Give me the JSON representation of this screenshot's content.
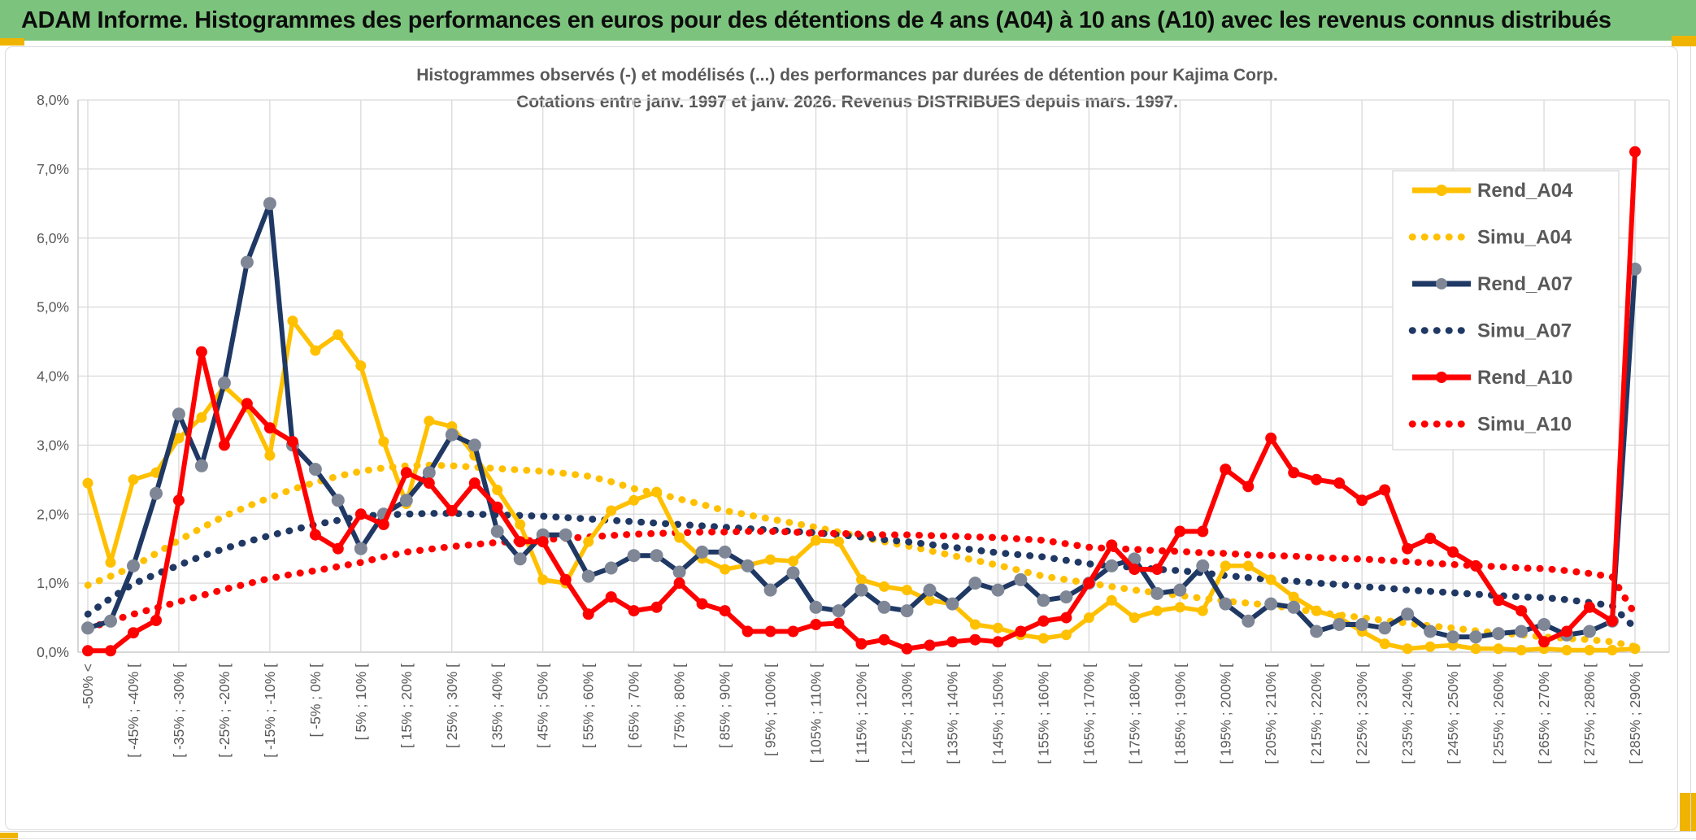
{
  "header": {
    "title": "ADAM Informe. Histogrammes des performances en euros pour des détentions de 4 ans (A04) à 10 ans (A10) avec les revenus connus distribués"
  },
  "accents": {
    "green": "#7CC47D",
    "gold": "#F0B400"
  },
  "chart_data": {
    "type": "line",
    "title_line1": "Histogrammes observés (-) et modélisés (...) des performances par durées de détention pour Kajima Corp.",
    "title_line2": "Cotations entre janv. 1997 et janv. 2026. Revenus DISTRIBUES depuis mars. 1997.",
    "ylim": [
      0,
      8
    ],
    "grid": true,
    "legend_position": "right-top",
    "text_color": "#595959",
    "grid_color": "#D9D9D9",
    "axis_color": "#BFBFBF",
    "y_ticks": [
      "0,0%",
      "1,0%",
      "2,0%",
      "3,0%",
      "4,0%",
      "5,0%",
      "6,0%",
      "7,0%",
      "8,0%"
    ],
    "n_points": 69,
    "points_per_label": 2,
    "x_tick_labels": [
      "-50% <",
      "[ -45% ; -40% [",
      "[ -35% ; -30% [",
      "[ -25% ; -20% [",
      "[ -15% ; -10% [",
      "[ -5% ; 0% [",
      "[ 5% ; 10% [",
      "[ 15% ; 20% [",
      "[ 25% ; 30% [",
      "[ 35% ; 40% [",
      "[ 45% ; 50% [",
      "[ 55% ; 60% [",
      "[ 65% ; 70% [",
      "[ 75% ; 80% [",
      "[ 85% ; 90% [",
      "[ 95% ; 100% [",
      "[ 105% ; 110% [",
      "[ 115% ; 120% [",
      "[ 125% ; 130% [",
      "[ 135% ; 140% [",
      "[ 145% ; 150% [",
      "[ 155% ; 160% [",
      "[ 165% ; 170% [",
      "[ 175% ; 180% [",
      "[ 185% ; 190% [",
      "[ 195% ; 200% [",
      "[ 205% ; 210% [",
      "[ 215% ; 220% [",
      "[ 225% ; 230% [",
      "[ 235% ; 240% [",
      "[ 245% ; 250% [",
      "[ 255% ; 260% [",
      "[ 265% ; 270% [",
      "[ 275% ; 280% [",
      "[ 285% ; 290% ["
    ],
    "series": [
      {
        "name": "Rend_A04",
        "style": "solid",
        "color": "#FFC000",
        "marker_color": "#FFC000",
        "marker_r": 6.5,
        "width": 5.5,
        "values": [
          2.45,
          1.3,
          2.5,
          2.6,
          3.1,
          3.4,
          3.85,
          3.55,
          2.85,
          4.8,
          4.37,
          4.6,
          4.15,
          3.05,
          2.15,
          3.35,
          3.27,
          2.85,
          2.35,
          1.85,
          1.05,
          1.0,
          1.6,
          2.05,
          2.2,
          2.32,
          1.66,
          1.36,
          1.2,
          1.26,
          1.34,
          1.32,
          1.62,
          1.6,
          1.05,
          0.95,
          0.9,
          0.75,
          0.7,
          0.4,
          0.35,
          0.25,
          0.2,
          0.25,
          0.5,
          0.75,
          0.5,
          0.6,
          0.65,
          0.6,
          1.25,
          1.25,
          1.05,
          0.8,
          0.6,
          0.5,
          0.3,
          0.12,
          0.05,
          0.08,
          0.1,
          0.05,
          0.05,
          0.03,
          0.05,
          0.03,
          0.03,
          0.03,
          0.05
        ]
      },
      {
        "name": "Simu_A04",
        "style": "dotted",
        "color": "#FFC000",
        "width": 8.5,
        "values": [
          0.97,
          1.1,
          1.24,
          1.43,
          1.62,
          1.8,
          1.97,
          2.11,
          2.24,
          2.36,
          2.46,
          2.55,
          2.62,
          2.67,
          2.7,
          2.71,
          2.7,
          2.68,
          2.66,
          2.64,
          2.62,
          2.59,
          2.55,
          2.47,
          2.37,
          2.3,
          2.22,
          2.14,
          2.05,
          1.99,
          1.93,
          1.87,
          1.81,
          1.74,
          1.67,
          1.6,
          1.54,
          1.47,
          1.4,
          1.33,
          1.26,
          1.18,
          1.1,
          1.05,
          1.0,
          0.95,
          0.9,
          0.86,
          0.82,
          0.78,
          0.74,
          0.71,
          0.68,
          0.63,
          0.58,
          0.54,
          0.5,
          0.46,
          0.42,
          0.38,
          0.35,
          0.31,
          0.28,
          0.25,
          0.22,
          0.2,
          0.18,
          0.15,
          0.08
        ]
      },
      {
        "name": "Rend_A07",
        "style": "solid",
        "color": "#1F3864",
        "marker_color": "#7F8796",
        "marker_r": 8,
        "width": 6,
        "values": [
          0.35,
          0.45,
          1.25,
          2.3,
          3.45,
          2.7,
          3.9,
          5.65,
          6.5,
          3.0,
          2.65,
          2.2,
          1.5,
          2.0,
          2.2,
          2.6,
          3.15,
          3.0,
          1.75,
          1.35,
          1.7,
          1.7,
          1.1,
          1.22,
          1.4,
          1.4,
          1.16,
          1.45,
          1.45,
          1.25,
          0.9,
          1.15,
          0.65,
          0.6,
          0.9,
          0.65,
          0.6,
          0.9,
          0.7,
          1.0,
          0.9,
          1.05,
          0.75,
          0.8,
          1.0,
          1.25,
          1.35,
          0.85,
          0.9,
          1.25,
          0.7,
          0.45,
          0.7,
          0.65,
          0.3,
          0.4,
          0.4,
          0.35,
          0.55,
          0.3,
          0.22,
          0.22,
          0.27,
          0.3,
          0.4,
          0.25,
          0.3,
          0.45,
          5.55
        ]
      },
      {
        "name": "Simu_A07",
        "style": "dotted",
        "color": "#1F3864",
        "width": 8.5,
        "values": [
          0.55,
          0.78,
          0.99,
          1.13,
          1.26,
          1.39,
          1.5,
          1.6,
          1.69,
          1.77,
          1.85,
          1.91,
          1.97,
          1.99,
          2.0,
          2.01,
          2.01,
          2.0,
          1.99,
          1.98,
          1.97,
          1.95,
          1.93,
          1.91,
          1.89,
          1.87,
          1.85,
          1.83,
          1.81,
          1.79,
          1.77,
          1.75,
          1.73,
          1.7,
          1.67,
          1.63,
          1.6,
          1.56,
          1.52,
          1.48,
          1.44,
          1.41,
          1.38,
          1.33,
          1.28,
          1.25,
          1.23,
          1.2,
          1.18,
          1.15,
          1.11,
          1.08,
          1.05,
          1.03,
          1.0,
          0.98,
          0.95,
          0.93,
          0.9,
          0.88,
          0.86,
          0.84,
          0.82,
          0.8,
          0.79,
          0.76,
          0.72,
          0.67,
          0.35
        ]
      },
      {
        "name": "Rend_A10",
        "style": "solid",
        "color": "#FF0000",
        "marker_color": "#FF0000",
        "marker_r": 7,
        "width": 6,
        "values": [
          0.02,
          0.02,
          0.28,
          0.46,
          2.2,
          4.35,
          3.0,
          3.6,
          3.25,
          3.05,
          1.7,
          1.5,
          2.0,
          1.85,
          2.6,
          2.45,
          2.05,
          2.45,
          2.1,
          1.6,
          1.6,
          1.05,
          0.55,
          0.8,
          0.6,
          0.65,
          1.0,
          0.7,
          0.6,
          0.3,
          0.3,
          0.3,
          0.4,
          0.42,
          0.12,
          0.18,
          0.05,
          0.1,
          0.15,
          0.18,
          0.15,
          0.3,
          0.45,
          0.5,
          1.0,
          1.55,
          1.2,
          1.2,
          1.75,
          1.75,
          2.65,
          2.4,
          3.1,
          2.6,
          2.5,
          2.45,
          2.2,
          2.35,
          1.5,
          1.65,
          1.45,
          1.25,
          0.75,
          0.6,
          0.15,
          0.3,
          0.65,
          0.45,
          7.25
        ]
      },
      {
        "name": "Simu_A10",
        "style": "dotted",
        "color": "#FF0000",
        "width": 8.5,
        "values": [
          0.34,
          0.45,
          0.55,
          0.64,
          0.73,
          0.82,
          0.91,
          0.99,
          1.07,
          1.13,
          1.18,
          1.24,
          1.3,
          1.38,
          1.45,
          1.49,
          1.53,
          1.56,
          1.59,
          1.61,
          1.63,
          1.65,
          1.67,
          1.69,
          1.71,
          1.72,
          1.73,
          1.74,
          1.74,
          1.75,
          1.75,
          1.74,
          1.72,
          1.72,
          1.71,
          1.7,
          1.7,
          1.69,
          1.68,
          1.67,
          1.66,
          1.64,
          1.62,
          1.57,
          1.52,
          1.5,
          1.49,
          1.47,
          1.46,
          1.44,
          1.43,
          1.41,
          1.4,
          1.39,
          1.37,
          1.36,
          1.35,
          1.33,
          1.31,
          1.29,
          1.27,
          1.25,
          1.24,
          1.22,
          1.21,
          1.18,
          1.14,
          1.09,
          0.55
        ]
      }
    ]
  }
}
